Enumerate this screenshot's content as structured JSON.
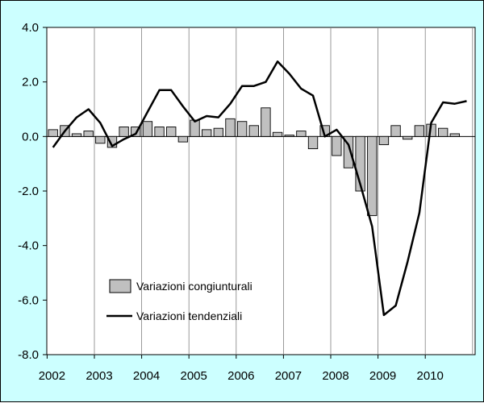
{
  "chart_data": {
    "type": "bar",
    "title": "",
    "xlabel": "",
    "ylabel": "",
    "ylim": [
      -8,
      4
    ],
    "yticks": [
      "4.0",
      "2.0",
      "0.0",
      "-2.0",
      "-4.0",
      "-6.0",
      "-8.0"
    ],
    "ytick_values": [
      4,
      2,
      0,
      -2,
      -4,
      -6,
      -8
    ],
    "year_labels": [
      "2002",
      "2003",
      "2004",
      "2005",
      "2006",
      "2007",
      "2008",
      "2009",
      "2010"
    ],
    "grid": "vertical lines at year boundaries",
    "legend": "lower-left, inside plot",
    "quarters": [
      "2002Q1",
      "2002Q2",
      "2002Q3",
      "2002Q4",
      "2003Q1",
      "2003Q2",
      "2003Q3",
      "2003Q4",
      "2004Q1",
      "2004Q2",
      "2004Q3",
      "2004Q4",
      "2005Q1",
      "2005Q2",
      "2005Q3",
      "2005Q4",
      "2006Q1",
      "2006Q2",
      "2006Q3",
      "2006Q4",
      "2007Q1",
      "2007Q2",
      "2007Q3",
      "2007Q4",
      "2008Q1",
      "2008Q2",
      "2008Q3",
      "2008Q4",
      "2009Q1",
      "2009Q2",
      "2009Q3",
      "2009Q4",
      "2010Q1",
      "2010Q2",
      "2010Q3",
      "2010Q4"
    ],
    "series": [
      {
        "name": "Variazioni congiunturali",
        "type": "bar",
        "color": "#c0c0c0",
        "values": [
          0.25,
          0.4,
          0.1,
          0.2,
          -0.25,
          -0.4,
          0.35,
          0.35,
          0.55,
          0.35,
          0.35,
          -0.2,
          0.6,
          0.25,
          0.3,
          0.65,
          0.55,
          0.4,
          1.05,
          0.15,
          0.05,
          0.2,
          -0.45,
          0.4,
          -0.7,
          -1.15,
          -2.0,
          -2.9,
          -0.3,
          0.4,
          -0.1,
          0.4,
          0.45,
          0.3,
          0.1,
          null
        ]
      },
      {
        "name": "Variazioni tendenziali",
        "type": "line",
        "color": "#000000",
        "values": [
          -0.4,
          0.2,
          0.7,
          1.0,
          0.5,
          -0.35,
          -0.1,
          0.1,
          0.9,
          1.7,
          1.7,
          1.1,
          0.55,
          0.75,
          0.7,
          1.2,
          1.85,
          1.85,
          2.0,
          2.75,
          2.3,
          1.75,
          1.5,
          0.0,
          0.25,
          -0.3,
          -1.75,
          -3.3,
          -6.55,
          -6.2,
          -4.6,
          -2.8,
          0.5,
          1.25,
          1.2,
          1.3
        ]
      }
    ]
  }
}
